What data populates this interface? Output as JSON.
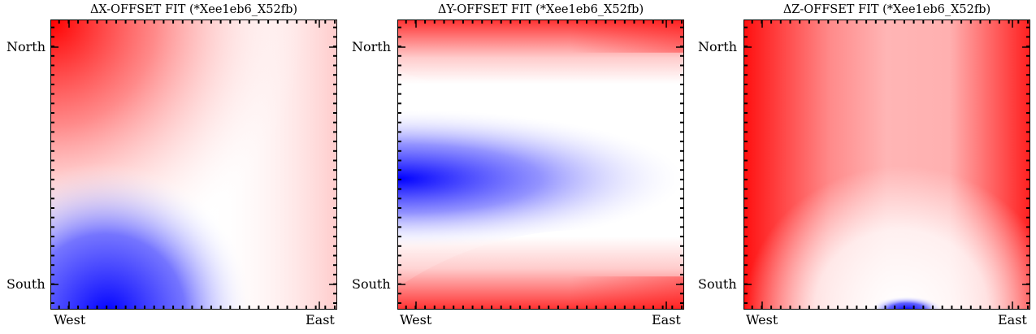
{
  "chart_data": [
    {
      "type": "heatmap",
      "title": "ΔX-OFFSET FIT (*Xee1eb6_X52fb)",
      "xlabel": "",
      "ylabel": "",
      "x_tick_labels": [
        "West",
        "East"
      ],
      "y_tick_labels": [
        "North",
        "South"
      ],
      "colormap": "bwr",
      "colors": {
        "low": "#0000ff",
        "mid": "#ffffff",
        "high": "#ff0000"
      },
      "grid": false,
      "pattern": "red maximum at top-left (North-West), white across centre, blue minimum at bottom-left (South-West) reaching toward south-centre, pale red at right"
    },
    {
      "type": "heatmap",
      "title": "ΔY-OFFSET FIT (*Xee1eb6_X52fb)",
      "xlabel": "",
      "ylabel": "",
      "x_tick_labels": [
        "West",
        "East"
      ],
      "y_tick_labels": [
        "North",
        "South"
      ],
      "colormap": "bwr",
      "colors": {
        "low": "#0000ff",
        "mid": "#ffffff",
        "high": "#ff0000"
      },
      "grid": false,
      "pattern": "red bands along north and south edges, blue band in the middle strongest at the west edge and fading toward the east"
    },
    {
      "type": "heatmap",
      "title": "ΔZ-OFFSET FIT (*Xee1eb6_X52fb)",
      "xlabel": "",
      "ylabel": "",
      "x_tick_labels": [
        "West",
        "East"
      ],
      "y_tick_labels": [
        "North",
        "South"
      ],
      "colormap": "bwr",
      "colors": {
        "low": "#0000ff",
        "mid": "#ffffff",
        "high": "#ff0000"
      },
      "grid": false,
      "pattern": "red along the west and east edges, pale red centre, small blue lobe at the bottom centre (South)"
    }
  ]
}
